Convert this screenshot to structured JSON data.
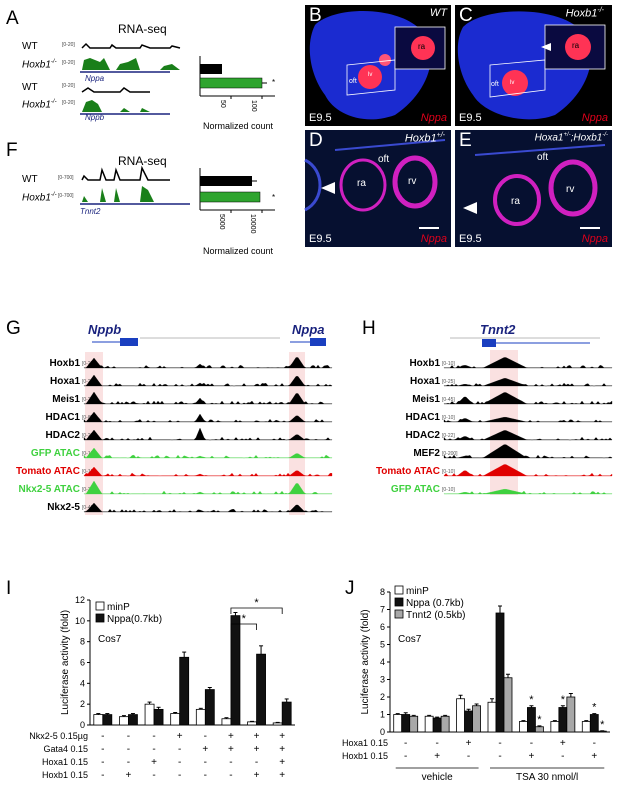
{
  "panels": {
    "A": {
      "label": "A",
      "title": "RNA-seq",
      "rows": [
        {
          "genotype": "WT",
          "range": "[0-20]"
        },
        {
          "genotype": "Hoxb1",
          "sup": "-/-",
          "range": "[0-20]"
        },
        {
          "genotype": "WT",
          "range": "[0-20]"
        },
        {
          "genotype": "Hoxb1",
          "sup": "-/-",
          "range": "[0-20]"
        }
      ],
      "genes": [
        "Nppa",
        "Nppb"
      ],
      "xlabel": "Normalized count",
      "ticks": [
        "50",
        "100"
      ],
      "star": "*"
    },
    "F": {
      "label": "F",
      "title": "RNA-seq",
      "rows": [
        {
          "genotype": "WT",
          "range": "[0-700]"
        },
        {
          "genotype": "Hoxb1",
          "sup": "-/-",
          "range": "[0-700]"
        }
      ],
      "gene": "Tnnt2",
      "xlabel": "Normalized count",
      "ticks": [
        "5000",
        "10000"
      ],
      "star": "*"
    },
    "B": {
      "label": "B",
      "genotype": "WT",
      "stage": "E9.5",
      "marker": "Nppa",
      "labels": [
        "ra",
        "oft",
        "lv"
      ]
    },
    "C": {
      "label": "C",
      "genotype": "Hoxb1",
      "sup": "-/-",
      "stage": "E9.5",
      "marker": "Nppa",
      "labels": [
        "ra",
        "oft",
        "lv"
      ]
    },
    "D": {
      "label": "D",
      "genotype": "Hoxb1",
      "sup": "+/-",
      "stage": "E9.5",
      "marker": "Nppa",
      "labels": [
        "oft",
        "ra",
        "rv"
      ]
    },
    "E": {
      "label": "E",
      "genotype_a": "Hoxa1",
      "sup_a": "+/-",
      "genotype_b": ";Hoxb1",
      "sup_b": "-/-",
      "stage": "E9.5",
      "marker": "Nppa",
      "labels": [
        "oft",
        "ra",
        "rv"
      ]
    },
    "G": {
      "label": "G",
      "genes": [
        "Nppb",
        "Nppa"
      ],
      "tracks": [
        {
          "name": "Hoxb1",
          "range": "[0-25]",
          "color": "#000000"
        },
        {
          "name": "Hoxa1",
          "range": "[0-25]",
          "color": "#000000"
        },
        {
          "name": "Meis1",
          "range": "[0-26]",
          "color": "#000000"
        },
        {
          "name": "HDAC1",
          "range": "[0-8]",
          "color": "#000000"
        },
        {
          "name": "HDAC2",
          "range": "[0-22]",
          "color": "#000000"
        },
        {
          "name": "GFP ATAC",
          "range": "[0-10]",
          "color": "#3fd13f"
        },
        {
          "name": "Tomato ATAC",
          "range": "[0-10]",
          "color": "#e00000"
        },
        {
          "name": "Nkx2-5 ATAC",
          "range": "[0-30]",
          "color": "#3fd13f"
        },
        {
          "name": "Nkx2-5",
          "range": "[0-40]",
          "color": "#000000"
        }
      ]
    },
    "H": {
      "label": "H",
      "gene": "Tnnt2",
      "tracks": [
        {
          "name": "Hoxb1",
          "range": "[0-10]",
          "color": "#000000"
        },
        {
          "name": "Hoxa1",
          "range": "[0-25]",
          "color": "#000000"
        },
        {
          "name": "Meis1",
          "range": "[0-45]",
          "color": "#000000"
        },
        {
          "name": "HDAC1",
          "range": "[0-10]",
          "color": "#000000"
        },
        {
          "name": "HDAC2",
          "range": "[0-22]",
          "color": "#000000"
        },
        {
          "name": "MEF2",
          "range": "[0-200]",
          "color": "#000000"
        },
        {
          "name": "Tomato ATAC",
          "range": "[0-10]",
          "color": "#e00000"
        },
        {
          "name": "GFP ATAC",
          "range": "[0-10]",
          "color": "#3fd13f"
        }
      ]
    },
    "I": {
      "label": "I",
      "cell": "Cos7",
      "ylabel": "Luciferase activity (fold)"
    },
    "J": {
      "label": "J",
      "cell": "Cos7",
      "ylabel": "Luciferase activity (fold)",
      "group1": "vehicle",
      "group2": "TSA 30 nmol/l"
    }
  },
  "chart_data": [
    {
      "type": "bar",
      "panel": "I",
      "ylim": [
        0,
        12
      ],
      "yticks": [
        0,
        2,
        4,
        6,
        8,
        10,
        12
      ],
      "ylabel": "Luciferase activity (fold)",
      "legend": [
        "minP",
        "Nppa(0.7kb)"
      ],
      "series": [
        {
          "name": "minP",
          "values": [
            1.0,
            0.8,
            2.0,
            1.1,
            1.5,
            0.6,
            0.3,
            0.2
          ],
          "errors": [
            0.1,
            0.1,
            0.2,
            0.1,
            0.1,
            0.1,
            0.05,
            0.05
          ]
        },
        {
          "name": "Nppa(0.7kb)",
          "values": [
            1.0,
            1.0,
            1.5,
            6.5,
            3.4,
            10.5,
            6.8,
            2.2
          ],
          "errors": [
            0.1,
            0.1,
            0.2,
            0.5,
            0.2,
            0.3,
            0.8,
            0.3
          ]
        }
      ],
      "conditions": [
        {
          "label": "Nkx2-5 0.15µg",
          "marks": [
            "-",
            "-",
            "-",
            "+",
            "-",
            "+",
            "+",
            "+"
          ]
        },
        {
          "label": "Gata4 0.15",
          "marks": [
            "-",
            "-",
            "-",
            "-",
            "+",
            "+",
            "+",
            "+"
          ]
        },
        {
          "label": "Hoxa1 0.15",
          "marks": [
            "-",
            "-",
            "+",
            "-",
            "-",
            "-",
            "-",
            "+"
          ]
        },
        {
          "label": "Hoxb1 0.15",
          "marks": [
            "-",
            "+",
            "-",
            "-",
            "-",
            "-",
            "+",
            "+"
          ]
        }
      ],
      "significance": [
        {
          "from": 5,
          "to": 6,
          "label": "*"
        },
        {
          "from": 5,
          "to": 7,
          "label": "*"
        }
      ]
    },
    {
      "type": "bar",
      "panel": "J",
      "ylim": [
        0,
        8
      ],
      "yticks": [
        0,
        1,
        2,
        3,
        4,
        5,
        6,
        7,
        8
      ],
      "ylabel": "Luciferase activity (fold)",
      "legend": [
        "minP",
        "Nppa (0.7kb)",
        "Tnnt2 (0.5kb)"
      ],
      "series": [
        {
          "name": "minP",
          "values": [
            1.0,
            0.9,
            1.9,
            1.7,
            0.6,
            0.6,
            0.6
          ],
          "errors": [
            0.05,
            0.05,
            0.2,
            0.2,
            0.05,
            0.05,
            0.05
          ]
        },
        {
          "name": "Nppa (0.7kb)",
          "values": [
            1.0,
            0.8,
            1.2,
            6.8,
            1.4,
            1.4,
            1.0
          ],
          "errors": [
            0.1,
            0.05,
            0.1,
            0.4,
            0.1,
            0.1,
            0.05
          ]
        },
        {
          "name": "Tnnt2 (0.5kb)",
          "values": [
            0.9,
            0.9,
            1.5,
            3.1,
            0.3,
            2.0,
            0.05
          ],
          "errors": [
            0.05,
            0.05,
            0.1,
            0.2,
            0.05,
            0.2,
            0.02
          ]
        }
      ],
      "stars": [
        {
          "group": 4,
          "series": 1,
          "label": "*"
        },
        {
          "group": 4,
          "series": 2,
          "label": "*"
        },
        {
          "group": 5,
          "series": 1,
          "label": "*"
        },
        {
          "group": 6,
          "series": 1,
          "label": "*"
        },
        {
          "group": 6,
          "series": 2,
          "label": "*"
        }
      ],
      "conditions": [
        {
          "label": "Hoxa1 0.15",
          "marks": [
            "-",
            "-",
            "+",
            "-",
            "-",
            "+",
            "-"
          ]
        },
        {
          "label": "Hoxb1 0.15",
          "marks": [
            "-",
            "+",
            "-",
            "-",
            "+",
            "-",
            "+"
          ]
        }
      ],
      "groups": [
        {
          "label": "vehicle",
          "range": [
            0,
            2
          ]
        },
        {
          "label": "TSA 30 nmol/l",
          "range": [
            3,
            6
          ]
        }
      ]
    }
  ]
}
